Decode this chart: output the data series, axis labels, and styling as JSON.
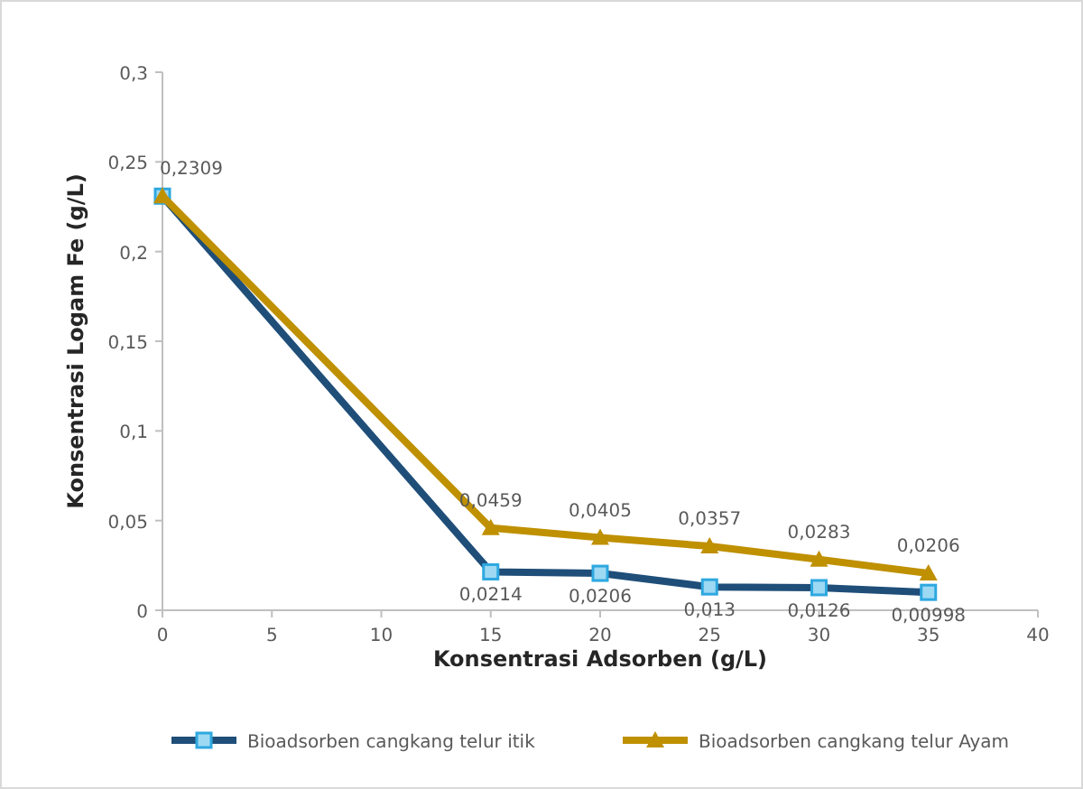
{
  "chart_data": {
    "type": "line",
    "xlabel": "Konsentrasi Adsorben (g/L)",
    "ylabel": "Konsentrasi Logam Fe (g/L)",
    "xlim": [
      0,
      40
    ],
    "xticks": [
      0,
      5,
      10,
      15,
      20,
      25,
      30,
      35,
      40
    ],
    "ylim": [
      0,
      0.3
    ],
    "yticks": [
      0,
      {
        "value": 0.05,
        "label": "0,05"
      },
      {
        "value": 0.1,
        "label": "0,1"
      },
      {
        "value": 0.15,
        "label": "0,15"
      },
      {
        "value": 0.2,
        "label": "0,2"
      },
      {
        "value": 0.25,
        "label": "0,25"
      },
      {
        "value": 0.3,
        "label": "0,3"
      }
    ],
    "x": [
      0,
      15,
      20,
      25,
      30,
      35
    ],
    "series": [
      {
        "name": "Bioadsorben cangkang telur itik",
        "color": "#1f4e79",
        "marker": "square",
        "values": [
          0.2309,
          0.0214,
          0.0206,
          0.013,
          0.0126,
          0.00998
        ],
        "value_labels": [
          "0,2309",
          "0,0214",
          "0,0206",
          "0,013",
          "0,0126",
          "0,00998"
        ]
      },
      {
        "name": "Bioadsorben cangkang telur Ayam",
        "color": "#bf9000",
        "marker": "triangle",
        "values": [
          0.2309,
          0.0459,
          0.0405,
          0.0357,
          0.0283,
          0.0206
        ],
        "value_labels": [
          null,
          "0,0459",
          "0,0405",
          "0,0357",
          "0,0283",
          "0,0206"
        ]
      }
    ],
    "grid": false,
    "legend": "bottom",
    "line_style": "solid"
  }
}
